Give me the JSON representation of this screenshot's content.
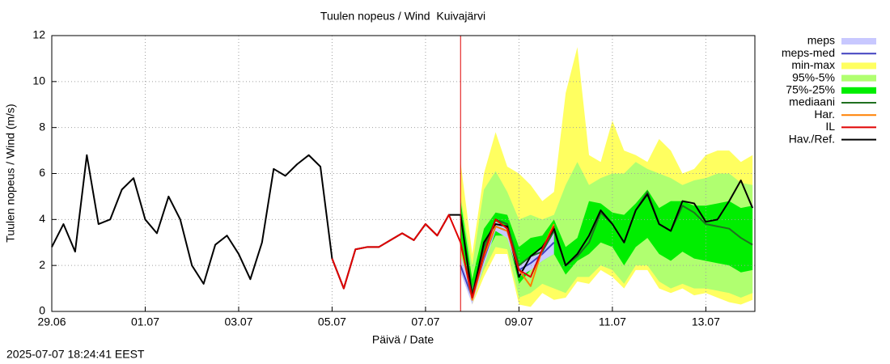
{
  "chart_data": {
    "type": "line",
    "title": "Tuulen nopeus / Wind  Kuivajärvi",
    "xlabel": "Päivä / Date",
    "ylabel": "Tuulen nopeus / Wind (m/s)",
    "footer": "2025-07-07 18:24:41 EEST",
    "xlim": [
      0,
      15.05
    ],
    "ylim": [
      0,
      12
    ],
    "xticks": [
      {
        "value": 0,
        "label": "29.06"
      },
      {
        "value": 2,
        "label": "01.07"
      },
      {
        "value": 4,
        "label": "03.07"
      },
      {
        "value": 6,
        "label": "05.07"
      },
      {
        "value": 8,
        "label": "07.07"
      },
      {
        "value": 10,
        "label": "09.07"
      },
      {
        "value": 12,
        "label": "11.07"
      },
      {
        "value": 14,
        "label": "13.07"
      }
    ],
    "yticks": [
      0,
      2,
      4,
      6,
      8,
      10,
      12
    ],
    "grid": true,
    "vline": {
      "x": 8.75,
      "color": "#e00000"
    },
    "x": [
      0,
      0.25,
      0.5,
      0.75,
      1,
      1.25,
      1.5,
      1.75,
      2,
      2.25,
      2.5,
      2.75,
      3,
      3.25,
      3.5,
      3.75,
      4,
      4.25,
      4.5,
      4.75,
      5,
      5.25,
      5.5,
      5.75,
      6,
      6.25,
      6.5,
      6.75,
      7,
      7.25,
      7.5,
      7.75,
      8,
      8.25,
      8.5,
      8.75,
      9,
      9.25,
      9.5,
      9.75,
      10,
      10.25,
      10.5,
      10.75,
      11,
      11.25,
      11.5,
      11.75,
      12,
      12.25,
      12.5,
      12.75,
      13,
      13.25,
      13.5,
      13.75,
      14,
      14.25,
      14.5,
      14.75,
      15
    ],
    "series": [
      {
        "name": "meps",
        "kind": "band",
        "color": "#c8c8ff",
        "lower": [
          null,
          null,
          null,
          null,
          null,
          null,
          null,
          null,
          null,
          null,
          null,
          null,
          null,
          null,
          null,
          null,
          null,
          null,
          null,
          null,
          null,
          null,
          null,
          null,
          null,
          null,
          null,
          null,
          null,
          null,
          null,
          null,
          null,
          null,
          null,
          1.7,
          0.3,
          2.0,
          3.5,
          3.2,
          1.5,
          1.8,
          2.2,
          2.5,
          null,
          null,
          null,
          null,
          null,
          null,
          null,
          null,
          null,
          null,
          null,
          null,
          null,
          null,
          null,
          null,
          null
        ],
        "upper": [
          null,
          null,
          null,
          null,
          null,
          null,
          null,
          null,
          null,
          null,
          null,
          null,
          null,
          null,
          null,
          null,
          null,
          null,
          null,
          null,
          null,
          null,
          null,
          null,
          null,
          null,
          null,
          null,
          null,
          null,
          null,
          null,
          null,
          null,
          null,
          2.4,
          1.0,
          2.6,
          3.9,
          3.7,
          2.0,
          2.4,
          2.8,
          3.6,
          null,
          null,
          null,
          null,
          null,
          null,
          null,
          null,
          null,
          null,
          null,
          null,
          null,
          null,
          null,
          null,
          null
        ]
      },
      {
        "name": "meps-med",
        "kind": "line",
        "color": "#4040c0",
        "values": [
          null,
          null,
          null,
          null,
          null,
          null,
          null,
          null,
          null,
          null,
          null,
          null,
          null,
          null,
          null,
          null,
          null,
          null,
          null,
          null,
          null,
          null,
          null,
          null,
          null,
          null,
          null,
          null,
          null,
          null,
          null,
          null,
          null,
          null,
          null,
          2.0,
          0.6,
          2.3,
          3.7,
          3.5,
          1.8,
          2.1,
          2.5,
          3.0,
          null,
          null,
          null,
          null,
          null,
          null,
          null,
          null,
          null,
          null,
          null,
          null,
          null,
          null,
          null,
          null,
          null
        ]
      },
      {
        "name": "min-max",
        "kind": "band",
        "color": "#ffff60",
        "lower": [
          null,
          null,
          null,
          null,
          null,
          null,
          null,
          null,
          null,
          null,
          null,
          null,
          null,
          null,
          null,
          null,
          null,
          null,
          null,
          null,
          null,
          null,
          null,
          null,
          null,
          null,
          null,
          null,
          null,
          null,
          null,
          null,
          null,
          null,
          null,
          2.0,
          0.3,
          1.5,
          2.5,
          2.5,
          0.3,
          0.2,
          0.8,
          0.5,
          0.6,
          1.3,
          1.2,
          1.8,
          1.5,
          1.0,
          1.8,
          1.8,
          1.0,
          0.8,
          1.0,
          0.7,
          0.8,
          0.6,
          0.4,
          0.3,
          0.5
        ],
        "upper": [
          null,
          null,
          null,
          null,
          null,
          null,
          null,
          null,
          null,
          null,
          null,
          null,
          null,
          null,
          null,
          null,
          null,
          null,
          null,
          null,
          null,
          null,
          null,
          null,
          null,
          null,
          null,
          null,
          null,
          null,
          null,
          null,
          null,
          null,
          null,
          6.5,
          2.5,
          6.0,
          7.8,
          6.3,
          6.0,
          5.5,
          4.8,
          5.2,
          9.5,
          11.5,
          6.8,
          6.5,
          8.3,
          7.0,
          6.8,
          6.5,
          7.5,
          7.0,
          6.0,
          6.2,
          6.8,
          7.0,
          7.0,
          6.5,
          6.8
        ]
      },
      {
        "name": "95%-5%",
        "kind": "band",
        "color": "#b0ff70",
        "lower": [
          null,
          null,
          null,
          null,
          null,
          null,
          null,
          null,
          null,
          null,
          null,
          null,
          null,
          null,
          null,
          null,
          null,
          null,
          null,
          null,
          null,
          null,
          null,
          null,
          null,
          null,
          null,
          null,
          null,
          null,
          null,
          null,
          null,
          null,
          null,
          2.5,
          0.5,
          1.8,
          2.8,
          2.7,
          0.6,
          0.8,
          1.2,
          1.0,
          0.8,
          1.5,
          1.5,
          2.0,
          1.8,
          1.2,
          2.0,
          2.0,
          1.3,
          1.0,
          1.2,
          1.0,
          1.0,
          0.9,
          0.8,
          0.6,
          0.8
        ],
        "upper": [
          null,
          null,
          null,
          null,
          null,
          null,
          null,
          null,
          null,
          null,
          null,
          null,
          null,
          null,
          null,
          null,
          null,
          null,
          null,
          null,
          null,
          null,
          null,
          null,
          null,
          null,
          null,
          null,
          null,
          null,
          null,
          null,
          null,
          null,
          null,
          5.0,
          2.0,
          5.3,
          6.1,
          5.2,
          4.0,
          4.2,
          4.0,
          4.2,
          5.5,
          6.5,
          5.5,
          5.8,
          6.0,
          6.0,
          6.5,
          6.2,
          6.0,
          5.8,
          5.5,
          5.7,
          5.8,
          6.0,
          6.0,
          5.6,
          5.5
        ]
      },
      {
        "name": "75%-25%",
        "kind": "band",
        "color": "#00ee00",
        "lower": [
          null,
          null,
          null,
          null,
          null,
          null,
          null,
          null,
          null,
          null,
          null,
          null,
          null,
          null,
          null,
          null,
          null,
          null,
          null,
          null,
          null,
          null,
          null,
          null,
          null,
          null,
          null,
          null,
          null,
          null,
          null,
          null,
          null,
          null,
          null,
          3.2,
          0.6,
          2.3,
          3.3,
          3.3,
          1.2,
          1.8,
          2.2,
          2.5,
          1.6,
          2.2,
          2.5,
          3.0,
          2.8,
          2.0,
          2.8,
          3.2,
          2.5,
          2.2,
          2.6,
          2.3,
          2.2,
          2.1,
          2.0,
          1.7,
          1.8
        ],
        "upper": [
          null,
          null,
          null,
          null,
          null,
          null,
          null,
          null,
          null,
          null,
          null,
          null,
          null,
          null,
          null,
          null,
          null,
          null,
          null,
          null,
          null,
          null,
          null,
          null,
          null,
          null,
          null,
          null,
          null,
          null,
          null,
          null,
          null,
          null,
          null,
          4.8,
          1.4,
          3.6,
          4.3,
          4.2,
          2.8,
          3.2,
          3.3,
          4.0,
          2.8,
          3.2,
          4.8,
          4.7,
          4.3,
          4.2,
          4.7,
          5.3,
          4.5,
          4.8,
          4.8,
          4.6,
          4.6,
          4.7,
          4.8,
          4.5,
          4.6
        ]
      },
      {
        "name": "mediaani",
        "kind": "line",
        "color": "#207020",
        "values": [
          null,
          null,
          null,
          null,
          null,
          null,
          null,
          null,
          null,
          null,
          null,
          null,
          null,
          null,
          null,
          null,
          null,
          null,
          null,
          null,
          null,
          null,
          null,
          null,
          null,
          null,
          null,
          null,
          null,
          null,
          null,
          null,
          null,
          null,
          null,
          4.2,
          0.8,
          2.8,
          4.0,
          3.8,
          2.0,
          2.4,
          2.6,
          3.5,
          2.0,
          2.4,
          3.0,
          4.3,
          3.8,
          3.0,
          4.4,
          5.2,
          3.8,
          3.5,
          4.6,
          4.3,
          3.8,
          3.7,
          3.6,
          3.2,
          2.9
        ]
      },
      {
        "name": "Har.",
        "kind": "line",
        "color": "#ff8000",
        "values": [
          null,
          null,
          null,
          null,
          null,
          null,
          null,
          null,
          null,
          null,
          null,
          null,
          null,
          null,
          null,
          null,
          null,
          null,
          null,
          null,
          null,
          null,
          null,
          null,
          null,
          null,
          null,
          null,
          null,
          null,
          null,
          null,
          null,
          null,
          null,
          3.0,
          0.5,
          2.4,
          3.7,
          3.5,
          1.8,
          1.1,
          2.7,
          3.8,
          null,
          null,
          null,
          null,
          null,
          null,
          null,
          null,
          null,
          null,
          null,
          null,
          null,
          null,
          null,
          null,
          null
        ]
      },
      {
        "name": "IL",
        "kind": "line",
        "color": "#e00000",
        "values": [
          null,
          null,
          null,
          null,
          null,
          null,
          null,
          null,
          null,
          null,
          null,
          null,
          null,
          null,
          null,
          null,
          null,
          null,
          null,
          null,
          null,
          null,
          null,
          null,
          2.3,
          1.0,
          2.7,
          2.8,
          2.8,
          3.1,
          3.4,
          3.1,
          3.8,
          3.3,
          4.2,
          3.0,
          0.6,
          2.5,
          4.0,
          3.6,
          1.8,
          1.5,
          2.7,
          3.7,
          null,
          null,
          null,
          null,
          null,
          null,
          null,
          null,
          null,
          null,
          null,
          null,
          null,
          null,
          null,
          null,
          null
        ]
      },
      {
        "name": "Hav./Ref.",
        "kind": "line",
        "color": "#000000",
        "values": [
          2.8,
          3.8,
          2.6,
          6.8,
          3.8,
          4.0,
          5.3,
          5.8,
          4.0,
          3.4,
          5.0,
          4.0,
          2.0,
          1.2,
          2.9,
          3.3,
          2.5,
          1.4,
          3.0,
          6.2,
          5.9,
          6.4,
          6.8,
          6.3,
          2.3,
          1.0,
          2.7,
          2.8,
          2.8,
          3.1,
          3.4,
          3.1,
          3.8,
          3.3,
          4.2,
          4.2,
          0.6,
          3.0,
          3.8,
          3.7,
          1.5,
          2.4,
          2.8,
          3.6,
          2.0,
          2.5,
          3.3,
          4.4,
          3.8,
          3.0,
          4.4,
          5.1,
          3.8,
          3.5,
          4.8,
          4.7,
          3.9,
          4.0,
          4.8,
          5.7,
          4.5
        ]
      }
    ]
  }
}
